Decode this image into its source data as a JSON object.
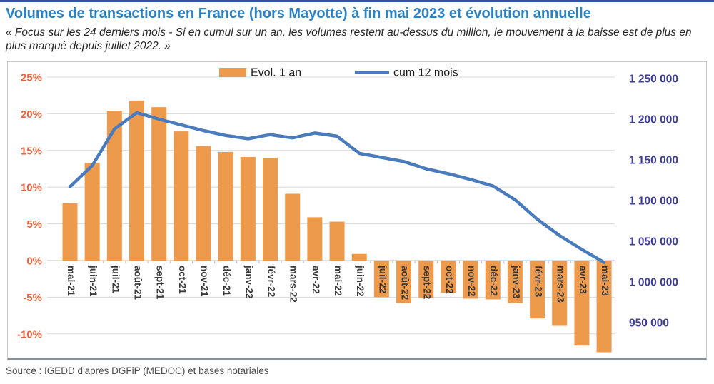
{
  "page": {
    "title": "Volumes de transactions en France (hors Mayotte) à fin mai 2023 et évolution annuelle",
    "subtitle": "« Focus sur les 24 derniers mois - Si en cumul sur un an, les volumes restent au-dessus du million, le mouvement à la baisse est de plus en plus marqué depuis juillet 2022. »",
    "source": "Source : IGEDD d'après DGFiP (MEDOC) et bases notariales"
  },
  "colors": {
    "accent_bar": "#2F5597",
    "title": "#2A82C5",
    "bar": "#EE9A4D",
    "line": "#4A7CBD",
    "left_axis": "#E9643C",
    "right_axis": "#3E3E96",
    "x_labels": "#3A3A3A",
    "grid": "#D8D8D8",
    "zero_axis": "#BFBFBF",
    "legend_text": "#1F1F1F"
  },
  "chart_data": {
    "type": "bar",
    "subtype": "combo bar + line, dual axis",
    "title": "",
    "grid": true,
    "legend_position": "top",
    "categories": [
      "mai-21",
      "juin-21",
      "juil-21",
      "août-21",
      "sept-21",
      "oct-21",
      "nov-21",
      "déc-21",
      "janv-22",
      "févr-22",
      "mars-22",
      "avr-22",
      "mai-22",
      "juin-22",
      "juil-22",
      "août-22",
      "sept-22",
      "oct-22",
      "nov-22",
      "déc-22",
      "janv-23",
      "févr-23",
      "mars-23",
      "avr-23",
      "mai-23"
    ],
    "series": [
      {
        "name": "Evol. 1 an",
        "type": "bar",
        "axis": "left",
        "unit": "%",
        "values": [
          7.8,
          13.3,
          20.4,
          21.8,
          20.9,
          17.6,
          15.6,
          14.8,
          14.1,
          14.0,
          9.1,
          5.9,
          5.3,
          0.9,
          -5.0,
          -5.8,
          -5.1,
          -4.4,
          -5.2,
          -5.3,
          -5.8,
          -7.9,
          -8.9,
          -11.6,
          -12.5
        ]
      },
      {
        "name": "cum 12 mois",
        "type": "line",
        "axis": "right",
        "unit": "transactions",
        "values": [
          1117000,
          1143000,
          1188000,
          1208000,
          1200000,
          1193000,
          1186000,
          1180000,
          1176000,
          1181000,
          1177000,
          1183000,
          1179000,
          1158000,
          1153000,
          1148000,
          1139000,
          1133000,
          1126000,
          1118000,
          1101000,
          1077000,
          1057000,
          1040000,
          1024000
        ]
      }
    ],
    "left_axis": {
      "labels": [
        "25%",
        "20%",
        "15%",
        "10%",
        "5%",
        "0%",
        "-5%",
        "-10%"
      ],
      "values": [
        25,
        20,
        15,
        10,
        5,
        0,
        -5,
        -10
      ],
      "range_shown": [
        -12.5,
        26.5
      ]
    },
    "right_axis": {
      "labels": [
        "1 250 000",
        "1 200 000",
        "1 150 000",
        "1 100 000",
        "1 050 000",
        "1 000 000",
        "950 000"
      ],
      "values": [
        1250000,
        1200000,
        1150000,
        1100000,
        1050000,
        1000000,
        950000
      ]
    }
  }
}
